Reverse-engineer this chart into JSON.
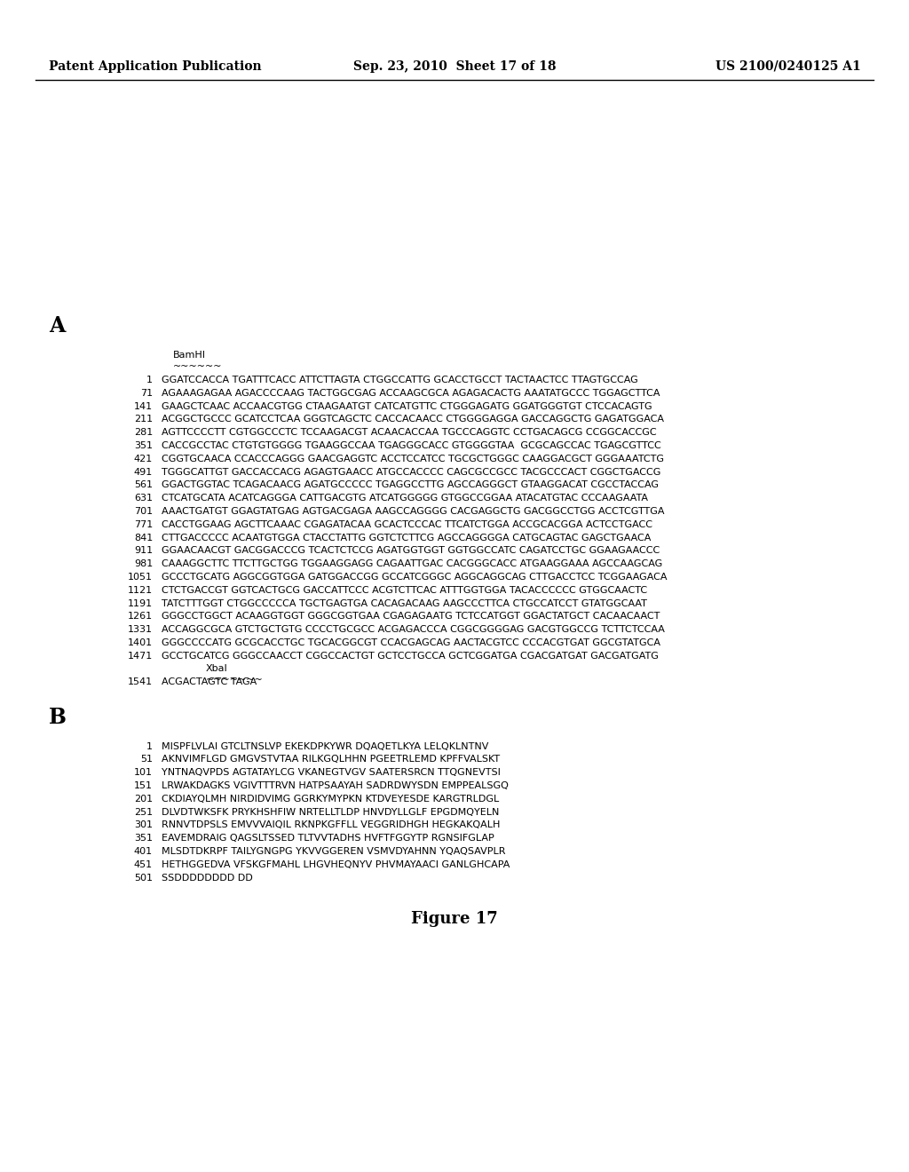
{
  "header_left": "Patent Application Publication",
  "header_center": "Sep. 23, 2010  Sheet 17 of 18",
  "header_right": "US 2100/0240125 A1",
  "section_a_label": "A",
  "section_b_label": "B",
  "bamhi_label": "BamHI",
  "xbai_label": "XbaI",
  "dna_lines": [
    [
      "1",
      "GGATCCACCA TGATTTCACC ATTCTTAGTA CTGGCCATTG GCACCTGCCT TACTAACTCC TTAGTGCCAG"
    ],
    [
      "71",
      "AGAAAGAGAA AGACCCCAAG TACTGGCGAG ACCAAGCGCA AGAGACACTG AAATATGCCC TGGAGCTTCA"
    ],
    [
      "141",
      "GAAGCTCAAC ACCAACGTGG CTAAGAATGT CATCATGTTC CTGGGAGATG GGATGGGTGT CTCCACAGTG"
    ],
    [
      "211",
      "ACGGCTGCCC GCATCCTCAA GGGTCAGCTC CACCACAACC CTGGGGAGGA GACCAGGCTG GAGATGGACA"
    ],
    [
      "281",
      "AGTTCCCCTT CGTGGCCCTC TCCAAGACGT ACAACACCAA TGCCCAGGTC CCTGACAGCG CCGGCACCGC"
    ],
    [
      "351",
      "CACCGCCTAC CTGTGTGGGG TGAAGGCCAA TGAGGGCACC GTGGGGTAA  GCGCAGCCAC TGAGCGTTCC"
    ],
    [
      "421",
      "CGGTGCAACA CCACCCAGGG GAACGAGGTC ACCTCCATCC TGCGCTGGGC CAAGGACGCT GGGAAATCTG"
    ],
    [
      "491",
      "TGGGCATTGT GACCACCACG AGAGTGAACC ATGCCACCCC CAGCGCCGCC TACGCCCACT CGGCTGACCG"
    ],
    [
      "561",
      "GGACTGGTAC TCAGACAACG AGATGCCCCC TGAGGCCTTG AGCCAGGGCT GTAAGGACAT CGCCTACCAG"
    ],
    [
      "631",
      "CTCATGCATA ACATCAGGGA CATTGACGTG ATCATGGGGG GTGGCCGGAA ATACATGTAC CCCAAGAATA"
    ],
    [
      "701",
      "AAACTGATGT GGAGTATGAG AGTGACGAGA AAGCCAGGGG CACGAGGCTG GACGGCCTGG ACCTCGTTGA"
    ],
    [
      "771",
      "CACCTGGAAG AGCTTCAAAC CGAGATACAA GCACTCCCAC TTCATCTGGA ACCGCACGGA ACTCCTGACC"
    ],
    [
      "841",
      "CTTGACCCCC ACAATGTGGA CTACCTATTG GGTCTCTTCG AGCCAGGGGA CATGCAGTAC GAGCTGAACA"
    ],
    [
      "911",
      "GGAACAACGT GACGGACCCG TCACTCTCCG AGATGGTGGT GGTGGCCATC CAGATCCTGC GGAAGAACCC"
    ],
    [
      "981",
      "CAAAGGCTTC TTCTTGCTGG TGGAAGGAGG CAGAATTGAC CACGGGCACC ATGAAGGAAA AGCCAAGCAG"
    ],
    [
      "1051",
      "GCCCTGCATG AGGCGGTGGA GATGGACCGG GCCATCGGGC AGGCAGGCAG CTTGACCTCC TCGGAAGACA"
    ],
    [
      "1121",
      "CTCTGACCGT GGTCACTGCG GACCATTCCC ACGTCTTCAC ATTTGGTGGA TACACCCCCC GTGGCAACTC"
    ],
    [
      "1191",
      "TATCTTTGGT CTGGCCCCCA TGCTGAGTGA CACAGACAAG AAGCCCTTCA CTGCCATCCT GTATGGCAAT"
    ],
    [
      "1261",
      "GGGCCTGGCT ACAAGGTGGT GGGCGGTGAA CGAGAGAATG TCTCCATGGT GGACTATGCT CACAACAACT"
    ],
    [
      "1331",
      "ACCAGGCGCA GTCTGCTGTG CCCCTGCGCC ACGAGACCCA CGGCGGGGAG GACGTGGCCG TCTTCTCCAA"
    ],
    [
      "1401",
      "GGGCCCCATG GCGCACCTGC TGCACGGCGT CCACGAGCAG AACTACGTCC CCCACGTGAT GGCGTATGCA"
    ],
    [
      "1471",
      "GCCTGCATCG GGGCCAACCT CGGCCACTGT GCTCCTGCCA GCTCGGATGA CGACGATGAT GACGATGATG"
    ]
  ],
  "dna_last_line": [
    "1541",
    "ACGACTAGTC TAGA"
  ],
  "protein_lines": [
    [
      "1",
      "MISPFLVLAI GTCLTNSLVP EKEKDPKYWR DQAQETLKYA LELQKLNTNV"
    ],
    [
      "51",
      "AKNVIMFLGD GMGVSTVTAA RILKGQLHHN PGEETRLEMD KPFFVALSKT"
    ],
    [
      "101",
      "YNTNAQVPDS AGTATAYLCG VKANEGTVGV SAATERSRCN TTQGNEVTSI"
    ],
    [
      "151",
      "LRWAKDAGKS VGIVTTTRVN HATPSAAYAH SADRDWYSDN EMPPEALSGQ"
    ],
    [
      "201",
      "CKDIAYQLMH NIRDIDVIMG GGRKYMYPKN KTDVEYESDE KARGTRLDGL"
    ],
    [
      "251",
      "DLVDTWKSFK PRYKHSHFIW NRTELLTLDP HNVDYLLGLF EPGDMQYELN"
    ],
    [
      "301",
      "RNNVTDPSLS EMVVVAIQIL RKNPKGFFLL VEGGRIDHGH HEGKAKQALH"
    ],
    [
      "351",
      "EAVEMDRAIG QAGSLTSSED TLTVVTADHS HVFTFGGYTP RGNSIFGLAP"
    ],
    [
      "401",
      "MLSDTDKRPF TAILYGNGPG YKVVGGEREN VSMVDYAHNN YQAQSAVPLR"
    ],
    [
      "451",
      "HETHGGEDVA VFSKGFMAHL LHGVHEQNYV PHVMAYAACI GANLGHCAPA"
    ],
    [
      "501",
      "SSDDDDDDDD DD"
    ]
  ],
  "figure_label": "Figure 17",
  "bg_color": "#ffffff",
  "text_color": "#000000"
}
